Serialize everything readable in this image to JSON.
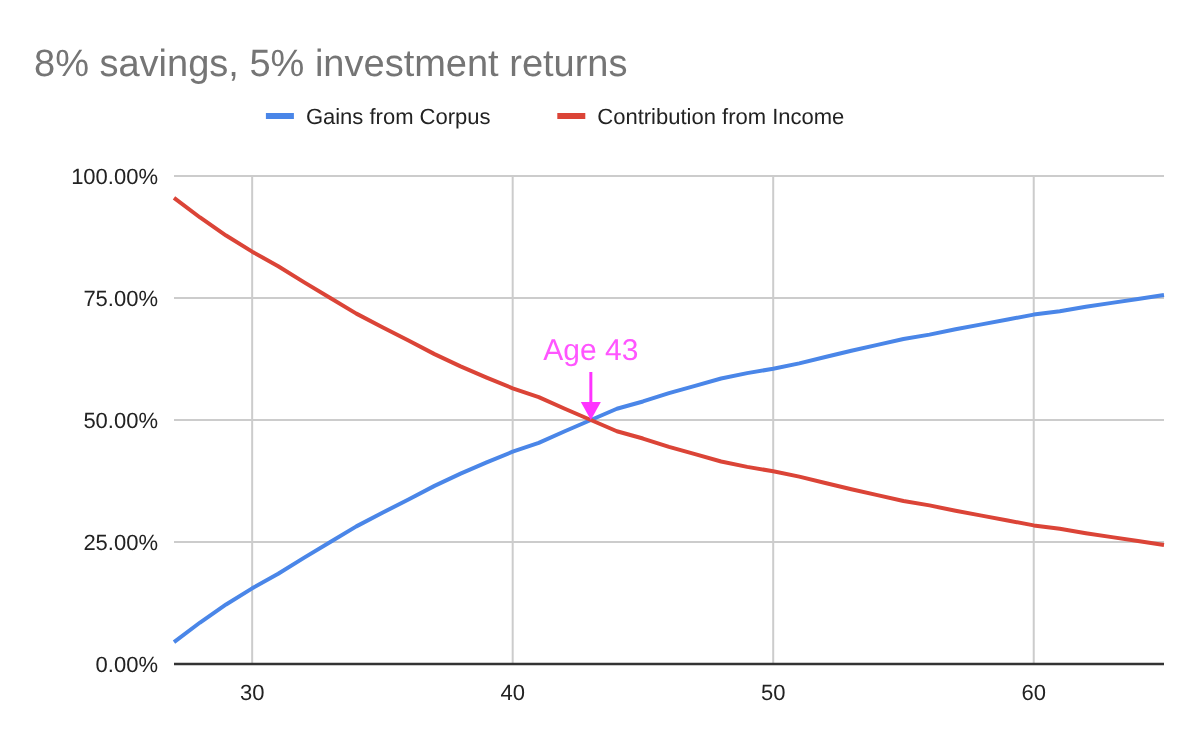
{
  "chart_data": {
    "type": "line",
    "title": "8% savings, 5% investment returns",
    "x": [
      27,
      28,
      29,
      30,
      31,
      32,
      33,
      34,
      35,
      36,
      37,
      38,
      39,
      40,
      41,
      42,
      43,
      44,
      45,
      46,
      47,
      48,
      49,
      50,
      51,
      52,
      53,
      54,
      55,
      56,
      57,
      58,
      59,
      60,
      61,
      62,
      63,
      64,
      65
    ],
    "series": [
      {
        "name": "Gains from Corpus",
        "color": "#4a86e8",
        "values": [
          4.5,
          8.5,
          12.2,
          15.5,
          18.5,
          21.8,
          25,
          28.2,
          31,
          33.7,
          36.5,
          39,
          41.3,
          43.5,
          45.3,
          47.7,
          50,
          52.3,
          53.8,
          55.5,
          57,
          58.5,
          59.6,
          60.5,
          61.6,
          62.9,
          64.2,
          65.4,
          66.6,
          67.5,
          68.6,
          69.6,
          70.6,
          71.6,
          72.3,
          73.2,
          74,
          74.8,
          75.6
        ]
      },
      {
        "name": "Contribution from Income",
        "color": "#db4437",
        "values": [
          95.5,
          91.5,
          87.8,
          84.5,
          81.5,
          78.2,
          75,
          71.8,
          69,
          66.3,
          63.5,
          61,
          58.7,
          56.5,
          54.7,
          52.3,
          50,
          47.7,
          46.2,
          44.5,
          43,
          41.5,
          40.4,
          39.5,
          38.4,
          37.1,
          35.8,
          34.6,
          33.4,
          32.5,
          31.4,
          30.4,
          29.4,
          28.4,
          27.7,
          26.8,
          26,
          25.2,
          24.4
        ]
      }
    ],
    "xlim": [
      27,
      65
    ],
    "xticks": [
      30,
      40,
      50,
      60
    ],
    "ylim": [
      0,
      100
    ],
    "yticks": [
      {
        "value": 0,
        "label": "0.00%"
      },
      {
        "value": 25,
        "label": "25.00%"
      },
      {
        "value": 50,
        "label": "50.00%"
      },
      {
        "value": 75,
        "label": "75.00%"
      },
      {
        "value": 100,
        "label": "100.00%"
      }
    ],
    "grid": true,
    "legend": "top",
    "marker": "none",
    "line_style": "solid",
    "annotations": [
      {
        "text": "Age 43",
        "x": 43,
        "y": 50
      }
    ]
  }
}
